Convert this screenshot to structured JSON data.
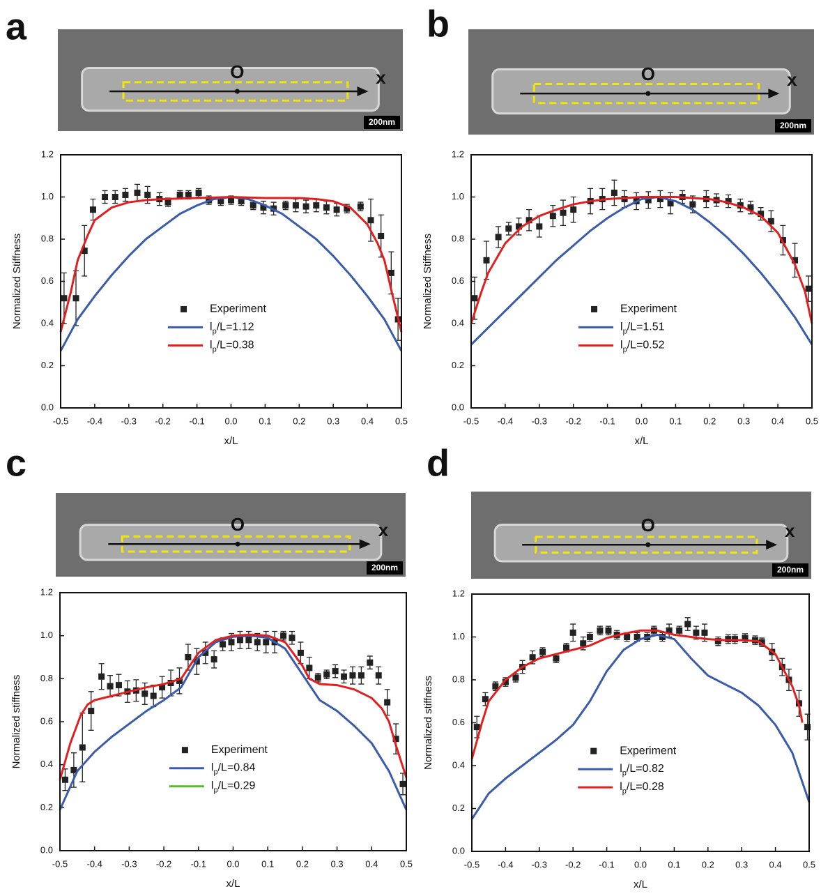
{
  "chart_data": [
    {
      "type": "scatter",
      "panel": "a",
      "image_labels": {
        "origin": "O",
        "axis": "x",
        "scale_bar": "200nm"
      },
      "xlabel": "x/L",
      "ylabel": "Normalized Stiffness",
      "xlim": [
        -0.5,
        0.5
      ],
      "ylim": [
        0,
        1.2
      ],
      "xticks": [
        -0.5,
        -0.4,
        -0.3,
        -0.2,
        -0.1,
        {
          "value": 0,
          "label": "0.0"
        },
        0.1,
        0.2,
        0.3,
        0.4,
        0.5
      ],
      "yticks": [
        {
          "value": 0,
          "label": "0.0"
        },
        0.2,
        0.4,
        0.6,
        0.8,
        {
          "value": 1,
          "label": "1.0"
        },
        1.2
      ],
      "series": [
        {
          "name": "Experiment",
          "color": "#222222",
          "style": "markers",
          "x": [
            -0.49,
            -0.455,
            -0.43,
            -0.405,
            -0.37,
            -0.34,
            -0.31,
            -0.275,
            -0.245,
            -0.21,
            -0.185,
            -0.15,
            -0.125,
            -0.095,
            -0.065,
            -0.03,
            0.0,
            0.03,
            0.065,
            0.095,
            0.125,
            0.16,
            0.19,
            0.22,
            0.25,
            0.28,
            0.31,
            0.34,
            0.38,
            0.41,
            0.44,
            0.47,
            0.49
          ],
          "values": [
            0.52,
            0.52,
            0.745,
            0.94,
            1.0,
            1.0,
            1.01,
            1.02,
            1.01,
            0.99,
            0.975,
            1.01,
            1.01,
            1.02,
            0.985,
            0.98,
            0.985,
            0.98,
            0.96,
            0.95,
            0.945,
            0.96,
            0.96,
            0.955,
            0.96,
            0.95,
            0.94,
            0.945,
            0.955,
            0.89,
            0.815,
            0.64,
            0.42
          ],
          "errors": [
            0.12,
            0.13,
            0.12,
            0.05,
            0.03,
            0.03,
            0.03,
            0.04,
            0.04,
            0.03,
            0.02,
            0.02,
            0.02,
            0.02,
            0.02,
            0.02,
            0.02,
            0.02,
            0.02,
            0.03,
            0.03,
            0.02,
            0.03,
            0.03,
            0.03,
            0.03,
            0.03,
            0.02,
            0.02,
            0.1,
            0.1,
            0.1,
            0.1
          ]
        },
        {
          "name": "lp/L=1.12",
          "color": "#3a5ca8",
          "style": "line",
          "x": [
            -0.5,
            -0.45,
            -0.4,
            -0.35,
            -0.3,
            -0.25,
            -0.2,
            -0.15,
            -0.1,
            -0.05,
            0,
            0.05,
            0.1,
            0.15,
            0.2,
            0.25,
            0.3,
            0.35,
            0.4,
            0.45,
            0.5
          ],
          "values": [
            0.27,
            0.42,
            0.53,
            0.63,
            0.72,
            0.8,
            0.86,
            0.92,
            0.96,
            0.99,
            1.0,
            0.99,
            0.96,
            0.92,
            0.86,
            0.8,
            0.72,
            0.63,
            0.53,
            0.42,
            0.27
          ]
        },
        {
          "name": "lp/L=0.38",
          "color": "#e02020",
          "style": "line",
          "x": [
            -0.5,
            -0.47,
            -0.45,
            -0.42,
            -0.4,
            -0.35,
            -0.3,
            -0.25,
            -0.2,
            -0.1,
            0,
            0.1,
            0.2,
            0.25,
            0.3,
            0.35,
            0.4,
            0.43,
            0.45,
            0.47,
            0.5
          ],
          "values": [
            0.36,
            0.55,
            0.7,
            0.82,
            0.89,
            0.95,
            0.975,
            0.985,
            0.99,
            0.995,
            1.0,
            0.995,
            0.995,
            0.99,
            0.98,
            0.95,
            0.87,
            0.78,
            0.7,
            0.56,
            0.36
          ]
        }
      ]
    },
    {
      "type": "scatter",
      "panel": "b",
      "image_labels": {
        "origin": "O",
        "axis": "x",
        "scale_bar": "200nm"
      },
      "xlabel": "x/L",
      "ylabel": "Normalized Stiffness",
      "xlim": [
        -0.5,
        0.5
      ],
      "ylim": [
        0,
        1.2
      ],
      "xticks": [
        -0.5,
        -0.4,
        -0.3,
        -0.2,
        -0.1,
        {
          "value": 0,
          "label": "0.0"
        },
        0.1,
        0.2,
        0.3,
        0.4,
        0.5
      ],
      "yticks": [
        {
          "value": 0,
          "label": "0.0"
        },
        0.2,
        0.4,
        0.6,
        0.8,
        {
          "value": 1,
          "label": "1.0"
        },
        1.2
      ],
      "series": [
        {
          "name": "Experiment",
          "color": "#222222",
          "style": "markers",
          "x": [
            -0.49,
            -0.455,
            -0.42,
            -0.39,
            -0.36,
            -0.33,
            -0.3,
            -0.26,
            -0.23,
            -0.2,
            -0.15,
            -0.115,
            -0.08,
            -0.05,
            -0.015,
            0.02,
            0.055,
            0.085,
            0.12,
            0.15,
            0.19,
            0.22,
            0.255,
            0.29,
            0.32,
            0.35,
            0.38,
            0.415,
            0.45,
            0.49
          ],
          "values": [
            0.52,
            0.7,
            0.81,
            0.85,
            0.86,
            0.89,
            0.86,
            0.91,
            0.925,
            0.94,
            0.98,
            0.99,
            1.02,
            0.99,
            0.98,
            0.985,
            0.99,
            0.97,
            1.0,
            0.965,
            0.99,
            0.985,
            0.98,
            0.96,
            0.95,
            0.92,
            0.885,
            0.795,
            0.7,
            0.565
          ],
          "errors": [
            0.1,
            0.09,
            0.05,
            0.03,
            0.04,
            0.05,
            0.05,
            0.05,
            0.06,
            0.06,
            0.06,
            0.05,
            0.06,
            0.04,
            0.04,
            0.04,
            0.04,
            0.05,
            0.03,
            0.04,
            0.04,
            0.03,
            0.03,
            0.03,
            0.03,
            0.03,
            0.05,
            0.07,
            0.08,
            0.06
          ]
        },
        {
          "name": "lp/L=1.51",
          "color": "#3a5ca8",
          "style": "line",
          "x": [
            -0.5,
            -0.45,
            -0.4,
            -0.35,
            -0.3,
            -0.25,
            -0.2,
            -0.15,
            -0.1,
            -0.05,
            0,
            0.05,
            0.1,
            0.15,
            0.2,
            0.25,
            0.3,
            0.35,
            0.4,
            0.45,
            0.5
          ],
          "values": [
            0.3,
            0.38,
            0.46,
            0.54,
            0.62,
            0.7,
            0.77,
            0.84,
            0.9,
            0.95,
            0.99,
            1.0,
            0.98,
            0.94,
            0.88,
            0.81,
            0.73,
            0.64,
            0.54,
            0.43,
            0.3
          ]
        },
        {
          "name": "lp/L=0.52",
          "color": "#e02020",
          "style": "line",
          "x": [
            -0.5,
            -0.47,
            -0.45,
            -0.4,
            -0.35,
            -0.3,
            -0.25,
            -0.2,
            -0.15,
            -0.1,
            0,
            0.1,
            0.2,
            0.25,
            0.3,
            0.35,
            0.4,
            0.45,
            0.48,
            0.5
          ],
          "values": [
            0.4,
            0.55,
            0.64,
            0.78,
            0.86,
            0.91,
            0.94,
            0.965,
            0.98,
            0.99,
            1.0,
            1.0,
            0.99,
            0.975,
            0.95,
            0.91,
            0.83,
            0.68,
            0.55,
            0.4
          ]
        }
      ]
    },
    {
      "type": "scatter",
      "panel": "c",
      "image_labels": {
        "origin": "O",
        "axis": "x",
        "scale_bar": "200nm"
      },
      "xlabel": "x/L",
      "ylabel": "Normalized stiffness",
      "xlim": [
        -0.5,
        0.5
      ],
      "ylim": [
        0,
        1.2
      ],
      "xticks": [
        -0.5,
        -0.4,
        -0.3,
        -0.2,
        -0.1,
        {
          "value": 0,
          "label": "0.0"
        },
        0.1,
        0.2,
        0.3,
        0.4,
        0.5
      ],
      "yticks": [
        {
          "value": 0,
          "label": "0.0"
        },
        0.2,
        0.4,
        0.6,
        0.8,
        {
          "value": 1,
          "label": "1.0"
        },
        1.2
      ],
      "series": [
        {
          "name": "Experiment",
          "color": "#222222",
          "style": "markers",
          "x": [
            -0.485,
            -0.46,
            -0.435,
            -0.41,
            -0.38,
            -0.355,
            -0.33,
            -0.305,
            -0.28,
            -0.255,
            -0.23,
            -0.205,
            -0.18,
            -0.155,
            -0.13,
            -0.105,
            -0.08,
            -0.055,
            -0.03,
            -0.005,
            0.02,
            0.045,
            0.07,
            0.095,
            0.12,
            0.145,
            0.17,
            0.195,
            0.22,
            0.245,
            0.27,
            0.295,
            0.32,
            0.345,
            0.37,
            0.395,
            0.42,
            0.445,
            0.47,
            0.49
          ],
          "values": [
            0.33,
            0.375,
            0.48,
            0.65,
            0.81,
            0.765,
            0.77,
            0.74,
            0.745,
            0.73,
            0.72,
            0.76,
            0.78,
            0.79,
            0.9,
            0.88,
            0.92,
            0.89,
            0.96,
            0.97,
            0.98,
            0.98,
            0.97,
            0.97,
            0.97,
            1.0,
            0.99,
            0.92,
            0.85,
            0.805,
            0.82,
            0.835,
            0.81,
            0.815,
            0.815,
            0.875,
            0.815,
            0.69,
            0.52,
            0.31
          ],
          "errors": [
            0.05,
            0.08,
            0.16,
            0.09,
            0.06,
            0.05,
            0.05,
            0.05,
            0.05,
            0.05,
            0.05,
            0.05,
            0.06,
            0.06,
            0.06,
            0.06,
            0.05,
            0.04,
            0.03,
            0.04,
            0.04,
            0.04,
            0.04,
            0.05,
            0.05,
            0.02,
            0.03,
            0.05,
            0.05,
            0.02,
            0.02,
            0.03,
            0.03,
            0.04,
            0.04,
            0.03,
            0.04,
            0.06,
            0.07,
            0.05
          ]
        },
        {
          "name": "lp/L=0.84",
          "color": "#3a5ca8",
          "style": "line",
          "x": [
            -0.5,
            -0.45,
            -0.4,
            -0.35,
            -0.3,
            -0.25,
            -0.2,
            -0.15,
            -0.1,
            -0.05,
            0,
            0.05,
            0.1,
            0.15,
            0.2,
            0.25,
            0.3,
            0.35,
            0.4,
            0.45,
            0.5
          ],
          "values": [
            0.19,
            0.37,
            0.46,
            0.53,
            0.59,
            0.65,
            0.7,
            0.76,
            0.9,
            0.97,
            0.995,
            1.0,
            0.99,
            0.94,
            0.82,
            0.7,
            0.65,
            0.58,
            0.5,
            0.37,
            0.19
          ]
        },
        {
          "name": "lp/L=0.29",
          "color": "#e02020",
          "legend_color": "#5cb82e",
          "style": "line",
          "x": [
            -0.5,
            -0.47,
            -0.44,
            -0.42,
            -0.4,
            -0.35,
            -0.3,
            -0.25,
            -0.2,
            -0.15,
            -0.1,
            -0.05,
            0,
            0.05,
            0.1,
            0.15,
            0.2,
            0.22,
            0.25,
            0.3,
            0.35,
            0.4,
            0.43,
            0.45,
            0.47,
            0.5
          ],
          "values": [
            0.33,
            0.5,
            0.63,
            0.68,
            0.7,
            0.72,
            0.74,
            0.76,
            0.775,
            0.8,
            0.92,
            0.98,
            1.0,
            1.005,
            1.0,
            0.97,
            0.86,
            0.8,
            0.775,
            0.77,
            0.75,
            0.71,
            0.66,
            0.6,
            0.49,
            0.34
          ]
        }
      ]
    },
    {
      "type": "scatter",
      "panel": "d",
      "image_labels": {
        "origin": "O",
        "axis": "x",
        "scale_bar": "200nm"
      },
      "xlabel": "x/L",
      "ylabel": "Normalized stiffness",
      "xlim": [
        -0.5,
        0.5
      ],
      "ylim": [
        0,
        1.2
      ],
      "xticks": [
        -0.5,
        -0.4,
        -0.3,
        -0.2,
        -0.1,
        {
          "value": 0,
          "label": "0.0"
        },
        0.1,
        0.2,
        0.3,
        0.4,
        0.5
      ],
      "yticks": [
        {
          "value": 0,
          "label": "0.0"
        },
        0.2,
        0.4,
        0.6,
        0.8,
        {
          "value": 1,
          "label": "1.0"
        },
        1.2
      ],
      "series": [
        {
          "name": "Experiment",
          "color": "#222222",
          "style": "markers",
          "x": [
            -0.485,
            -0.46,
            -0.43,
            -0.4,
            -0.37,
            -0.35,
            -0.32,
            -0.29,
            -0.25,
            -0.22,
            -0.2,
            -0.17,
            -0.15,
            -0.12,
            -0.095,
            -0.07,
            -0.04,
            -0.01,
            0.02,
            0.04,
            0.065,
            0.085,
            0.115,
            0.14,
            0.165,
            0.19,
            0.23,
            0.26,
            0.28,
            0.31,
            0.34,
            0.36,
            0.39,
            0.42,
            0.44,
            0.47,
            0.495
          ],
          "values": [
            0.58,
            0.71,
            0.77,
            0.79,
            0.81,
            0.86,
            0.905,
            0.93,
            0.9,
            0.95,
            1.02,
            0.97,
            1.0,
            1.03,
            1.03,
            1.01,
            1.0,
            1.0,
            1.0,
            1.03,
            1.0,
            1.03,
            1.03,
            1.06,
            1.02,
            1.02,
            0.98,
            0.99,
            0.99,
            0.995,
            0.985,
            0.975,
            0.93,
            0.86,
            0.8,
            0.69,
            0.58
          ],
          "errors": [
            0.05,
            0.03,
            0.02,
            0.02,
            0.02,
            0.03,
            0.03,
            0.02,
            0.02,
            0.02,
            0.04,
            0.03,
            0.02,
            0.02,
            0.02,
            0.02,
            0.02,
            0.02,
            0.02,
            0.02,
            0.02,
            0.03,
            0.02,
            0.03,
            0.03,
            0.04,
            0.02,
            0.02,
            0.02,
            0.02,
            0.02,
            0.02,
            0.04,
            0.04,
            0.05,
            0.06,
            0.06
          ]
        },
        {
          "name": "lp/L=0.82",
          "color": "#3a5ca8",
          "style": "line",
          "x": [
            -0.5,
            -0.45,
            -0.4,
            -0.35,
            -0.3,
            -0.25,
            -0.2,
            -0.15,
            -0.1,
            -0.05,
            0,
            0.05,
            0.1,
            0.15,
            0.2,
            0.25,
            0.3,
            0.35,
            0.4,
            0.45,
            0.5
          ],
          "values": [
            0.15,
            0.27,
            0.34,
            0.4,
            0.46,
            0.52,
            0.59,
            0.7,
            0.84,
            0.94,
            0.99,
            1.01,
            0.99,
            0.9,
            0.82,
            0.78,
            0.74,
            0.68,
            0.59,
            0.46,
            0.23
          ]
        },
        {
          "name": "lp/L=0.28",
          "color": "#e02020",
          "style": "line",
          "x": [
            -0.5,
            -0.47,
            -0.45,
            -0.4,
            -0.35,
            -0.3,
            -0.25,
            -0.2,
            -0.15,
            -0.1,
            -0.05,
            0,
            0.05,
            0.1,
            0.15,
            0.2,
            0.25,
            0.3,
            0.35,
            0.4,
            0.43,
            0.45,
            0.47,
            0.48
          ],
          "values": [
            0.43,
            0.6,
            0.7,
            0.8,
            0.86,
            0.9,
            0.92,
            0.94,
            0.96,
            0.995,
            1.015,
            1.03,
            1.03,
            1.01,
            1.0,
            0.99,
            0.985,
            0.985,
            0.98,
            0.92,
            0.83,
            0.77,
            0.68,
            0.6
          ]
        }
      ]
    }
  ]
}
